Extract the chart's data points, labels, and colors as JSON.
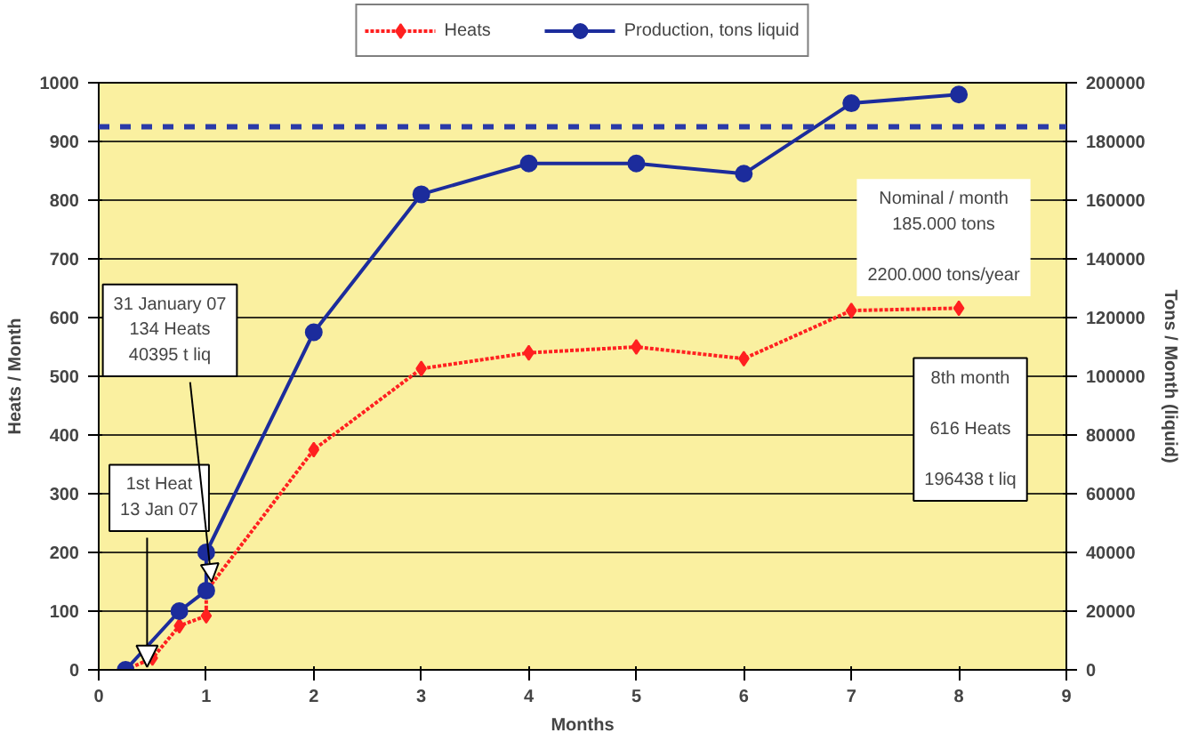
{
  "chart_data": {
    "type": "line",
    "xlabel": "Months",
    "ylabel": "Heats / Month",
    "y2label": "Tons / Month (liquid)",
    "xlim": [
      0,
      9
    ],
    "xticks": [
      0,
      1,
      2,
      3,
      4,
      5,
      6,
      7,
      8,
      9
    ],
    "ylim": [
      0,
      1000
    ],
    "yticks": [
      0,
      100,
      200,
      300,
      400,
      500,
      600,
      700,
      800,
      900,
      1000
    ],
    "y2lim": [
      0,
      200000
    ],
    "y2ticks": [
      0,
      20000,
      40000,
      60000,
      80000,
      100000,
      120000,
      140000,
      160000,
      180000,
      200000
    ],
    "grid": "y",
    "legend": "top",
    "series": [
      {
        "name": "Heats",
        "color": "#ff2020",
        "marker": "diamond",
        "line_style": "dotted",
        "x": [
          0.25,
          0.5,
          0.75,
          1,
          1,
          2,
          3,
          4,
          5,
          6,
          7,
          8
        ],
        "values": [
          0,
          20,
          75,
          92,
          134,
          375,
          513,
          540,
          550,
          530,
          612,
          616
        ]
      },
      {
        "name": "Production, tons liquid",
        "color": "#1c2c9c",
        "marker": "circle",
        "line_style": "solid",
        "axis": "y2",
        "x": [
          0.25,
          0.75,
          1,
          1,
          2,
          3,
          4,
          5,
          6,
          7,
          8
        ],
        "values": [
          0,
          20000,
          27000,
          40000,
          115000,
          162000,
          172500,
          172500,
          169000,
          193000,
          196000
        ]
      }
    ],
    "ref_lines": [
      {
        "axis": "y2",
        "value": 185000,
        "color": "#2a3aa8",
        "line_style": "dashed"
      }
    ],
    "annotations": [
      {
        "text": "1st Heat\n13 Jan 07",
        "x": 0.45,
        "y": 5
      },
      {
        "text": "31 January 07\n134 Heats\n40395 t liq",
        "x": 1.05,
        "y": 150
      },
      "Nominal / month\n185.000 tons\n\n2200.000 tons/year",
      "8th month\n\n616 Heats\n\n196438 t liq"
    ]
  }
}
